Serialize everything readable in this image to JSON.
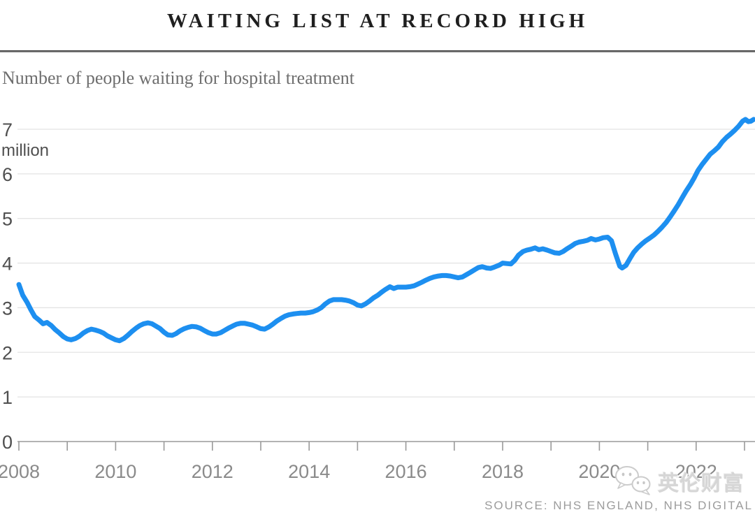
{
  "header": {
    "title": "WAITING LIST AT RECORD HIGH",
    "subtitle": "Number of people waiting for hospital treatment"
  },
  "footer": {
    "source": "SOURCE: NHS ENGLAND, NHS DIGITAL"
  },
  "watermark": {
    "icon": "wechat-chat-bubbles",
    "text": "英伦财富"
  },
  "chart_data": {
    "type": "line",
    "title": "WAITING LIST AT RECORD HIGH",
    "subtitle": "Number of people waiting for hospital treatment",
    "unit_label": "million",
    "source": "SOURCE: NHS ENGLAND, NHS DIGITAL",
    "xlim": [
      2008,
      2023.3
    ],
    "ylim": [
      0,
      7.3
    ],
    "yticks": [
      0,
      1,
      2,
      3,
      4,
      5,
      6,
      7
    ],
    "xticks": [
      2008,
      2009,
      2010,
      2011,
      2012,
      2013,
      2014,
      2015,
      2016,
      2017,
      2018,
      2019,
      2020,
      2021,
      2022,
      2023
    ],
    "xtick_labels": [
      2008,
      2010,
      2012,
      2014,
      2016,
      2018,
      2020,
      2022
    ],
    "grid": "horizontal",
    "legend": "none",
    "colors": {
      "line": "#1d8ff0",
      "grid": "#e4e4e4",
      "axis": "#9a9a9a",
      "xtick_label": "#8a8a8a",
      "ytick_label": "#4f4f4f"
    },
    "series": [
      {
        "name": "People waiting for hospital treatment (millions)",
        "points": [
          [
            2008,
            3.52
          ],
          [
            2008.08,
            3.28
          ],
          [
            2008.17,
            3.12
          ],
          [
            2008.25,
            2.95
          ],
          [
            2008.33,
            2.8
          ],
          [
            2008.42,
            2.72
          ],
          [
            2008.5,
            2.64
          ],
          [
            2008.58,
            2.67
          ],
          [
            2008.67,
            2.6
          ],
          [
            2008.75,
            2.51
          ],
          [
            2008.83,
            2.44
          ],
          [
            2008.92,
            2.35
          ],
          [
            2009,
            2.3
          ],
          [
            2009.08,
            2.28
          ],
          [
            2009.17,
            2.31
          ],
          [
            2009.25,
            2.36
          ],
          [
            2009.33,
            2.43
          ],
          [
            2009.42,
            2.49
          ],
          [
            2009.5,
            2.52
          ],
          [
            2009.58,
            2.5
          ],
          [
            2009.67,
            2.47
          ],
          [
            2009.75,
            2.43
          ],
          [
            2009.83,
            2.37
          ],
          [
            2009.92,
            2.32
          ],
          [
            2010,
            2.28
          ],
          [
            2010.08,
            2.26
          ],
          [
            2010.17,
            2.31
          ],
          [
            2010.25,
            2.38
          ],
          [
            2010.33,
            2.46
          ],
          [
            2010.42,
            2.54
          ],
          [
            2010.5,
            2.6
          ],
          [
            2010.58,
            2.64
          ],
          [
            2010.67,
            2.66
          ],
          [
            2010.75,
            2.64
          ],
          [
            2010.83,
            2.59
          ],
          [
            2010.92,
            2.53
          ],
          [
            2011,
            2.45
          ],
          [
            2011.08,
            2.39
          ],
          [
            2011.17,
            2.38
          ],
          [
            2011.25,
            2.42
          ],
          [
            2011.33,
            2.48
          ],
          [
            2011.42,
            2.53
          ],
          [
            2011.5,
            2.56
          ],
          [
            2011.58,
            2.58
          ],
          [
            2011.67,
            2.57
          ],
          [
            2011.75,
            2.54
          ],
          [
            2011.83,
            2.49
          ],
          [
            2011.92,
            2.44
          ],
          [
            2012,
            2.41
          ],
          [
            2012.08,
            2.41
          ],
          [
            2012.17,
            2.44
          ],
          [
            2012.25,
            2.49
          ],
          [
            2012.33,
            2.54
          ],
          [
            2012.42,
            2.59
          ],
          [
            2012.5,
            2.63
          ],
          [
            2012.58,
            2.65
          ],
          [
            2012.67,
            2.65
          ],
          [
            2012.75,
            2.63
          ],
          [
            2012.83,
            2.61
          ],
          [
            2012.92,
            2.57
          ],
          [
            2013,
            2.53
          ],
          [
            2013.08,
            2.52
          ],
          [
            2013.17,
            2.57
          ],
          [
            2013.25,
            2.63
          ],
          [
            2013.33,
            2.7
          ],
          [
            2013.42,
            2.76
          ],
          [
            2013.5,
            2.81
          ],
          [
            2013.58,
            2.84
          ],
          [
            2013.67,
            2.86
          ],
          [
            2013.75,
            2.87
          ],
          [
            2013.83,
            2.88
          ],
          [
            2013.92,
            2.88
          ],
          [
            2014,
            2.89
          ],
          [
            2014.08,
            2.91
          ],
          [
            2014.17,
            2.95
          ],
          [
            2014.25,
            3.0
          ],
          [
            2014.33,
            3.08
          ],
          [
            2014.42,
            3.15
          ],
          [
            2014.5,
            3.18
          ],
          [
            2014.58,
            3.18
          ],
          [
            2014.67,
            3.18
          ],
          [
            2014.75,
            3.17
          ],
          [
            2014.83,
            3.15
          ],
          [
            2014.92,
            3.11
          ],
          [
            2015,
            3.06
          ],
          [
            2015.08,
            3.04
          ],
          [
            2015.17,
            3.09
          ],
          [
            2015.25,
            3.15
          ],
          [
            2015.33,
            3.22
          ],
          [
            2015.42,
            3.28
          ],
          [
            2015.5,
            3.35
          ],
          [
            2015.58,
            3.41
          ],
          [
            2015.67,
            3.47
          ],
          [
            2015.75,
            3.43
          ],
          [
            2015.83,
            3.46
          ],
          [
            2015.92,
            3.46
          ],
          [
            2016,
            3.46
          ],
          [
            2016.08,
            3.47
          ],
          [
            2016.17,
            3.49
          ],
          [
            2016.25,
            3.53
          ],
          [
            2016.33,
            3.57
          ],
          [
            2016.42,
            3.62
          ],
          [
            2016.5,
            3.66
          ],
          [
            2016.58,
            3.69
          ],
          [
            2016.67,
            3.71
          ],
          [
            2016.75,
            3.72
          ],
          [
            2016.83,
            3.72
          ],
          [
            2016.92,
            3.71
          ],
          [
            2017,
            3.69
          ],
          [
            2017.08,
            3.67
          ],
          [
            2017.17,
            3.69
          ],
          [
            2017.25,
            3.74
          ],
          [
            2017.33,
            3.79
          ],
          [
            2017.42,
            3.85
          ],
          [
            2017.5,
            3.9
          ],
          [
            2017.58,
            3.92
          ],
          [
            2017.67,
            3.89
          ],
          [
            2017.75,
            3.88
          ],
          [
            2017.83,
            3.91
          ],
          [
            2017.92,
            3.95
          ],
          [
            2018,
            4.0
          ],
          [
            2018.08,
            3.99
          ],
          [
            2018.17,
            3.98
          ],
          [
            2018.25,
            4.06
          ],
          [
            2018.33,
            4.18
          ],
          [
            2018.42,
            4.26
          ],
          [
            2018.5,
            4.29
          ],
          [
            2018.58,
            4.31
          ],
          [
            2018.67,
            4.34
          ],
          [
            2018.75,
            4.3
          ],
          [
            2018.83,
            4.32
          ],
          [
            2018.92,
            4.29
          ],
          [
            2019,
            4.26
          ],
          [
            2019.08,
            4.23
          ],
          [
            2019.17,
            4.22
          ],
          [
            2019.25,
            4.26
          ],
          [
            2019.33,
            4.32
          ],
          [
            2019.42,
            4.38
          ],
          [
            2019.5,
            4.44
          ],
          [
            2019.58,
            4.47
          ],
          [
            2019.67,
            4.49
          ],
          [
            2019.75,
            4.51
          ],
          [
            2019.83,
            4.55
          ],
          [
            2019.92,
            4.52
          ],
          [
            2020,
            4.54
          ],
          [
            2020.08,
            4.57
          ],
          [
            2020.17,
            4.58
          ],
          [
            2020.25,
            4.5
          ],
          [
            2020.33,
            4.22
          ],
          [
            2020.42,
            3.93
          ],
          [
            2020.47,
            3.89
          ],
          [
            2020.55,
            3.95
          ],
          [
            2020.63,
            4.1
          ],
          [
            2020.71,
            4.24
          ],
          [
            2020.79,
            4.34
          ],
          [
            2020.88,
            4.43
          ],
          [
            2020.96,
            4.5
          ],
          [
            2021.04,
            4.56
          ],
          [
            2021.13,
            4.63
          ],
          [
            2021.21,
            4.71
          ],
          [
            2021.29,
            4.8
          ],
          [
            2021.38,
            4.91
          ],
          [
            2021.46,
            5.03
          ],
          [
            2021.54,
            5.16
          ],
          [
            2021.63,
            5.31
          ],
          [
            2021.71,
            5.46
          ],
          [
            2021.79,
            5.61
          ],
          [
            2021.88,
            5.76
          ],
          [
            2021.96,
            5.91
          ],
          [
            2022.04,
            6.08
          ],
          [
            2022.13,
            6.22
          ],
          [
            2022.21,
            6.33
          ],
          [
            2022.29,
            6.44
          ],
          [
            2022.38,
            6.52
          ],
          [
            2022.46,
            6.6
          ],
          [
            2022.54,
            6.72
          ],
          [
            2022.63,
            6.82
          ],
          [
            2022.71,
            6.89
          ],
          [
            2022.79,
            6.97
          ],
          [
            2022.88,
            7.07
          ],
          [
            2022.96,
            7.18
          ],
          [
            2023.02,
            7.22
          ],
          [
            2023.08,
            7.17
          ],
          [
            2023.13,
            7.18
          ],
          [
            2023.19,
            7.22
          ]
        ]
      }
    ]
  }
}
